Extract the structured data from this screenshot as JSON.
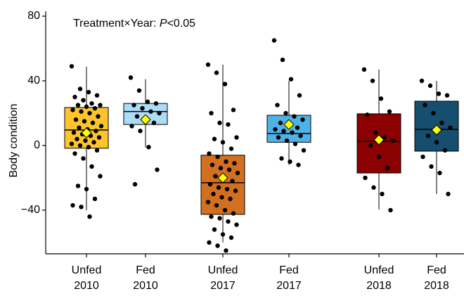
{
  "chart_data": {
    "type": "box",
    "annotation": [
      "Treatment×Year: ",
      "P",
      "<0.05"
    ],
    "ylabel": "Body condition",
    "ylim": [
      -67,
      83
    ],
    "yticks": [
      {
        "value": -40,
        "label": "−40"
      },
      0,
      40,
      80
    ],
    "categories": [
      [
        "Unfed",
        "2010"
      ],
      [
        "Fed",
        "2010"
      ],
      [
        "Unfed",
        "2017"
      ],
      [
        "Fed",
        "2017"
      ],
      [
        "Unfed",
        "2018"
      ],
      [
        "Fed",
        "2018"
      ]
    ],
    "boxes": [
      {
        "color": "#FDC52B",
        "whisker_low": -40,
        "q1": -1.7,
        "median": 9.6,
        "q3": 23.5,
        "whisker_high": 48.7,
        "mean": 7.8,
        "points": [
          49,
          35,
          33,
          31,
          30,
          28,
          26,
          25,
          25,
          24,
          23,
          22,
          21,
          20,
          18,
          16,
          15,
          14,
          12,
          11,
          10,
          9,
          8,
          7,
          6,
          5,
          4,
          3,
          2,
          1,
          0,
          -1,
          -3,
          -5,
          -8,
          -13,
          -19,
          -25,
          -27,
          -33,
          -37,
          -38,
          -44
        ]
      },
      {
        "color": "#ADDCF7",
        "whisker_low": -1.3,
        "q1": 13,
        "median": 21,
        "q3": 26,
        "whisker_high": 41,
        "mean": 16,
        "points": [
          42,
          34,
          27,
          26,
          25,
          23,
          21,
          20,
          18,
          16,
          14,
          12,
          9,
          -1,
          -15,
          -24
        ]
      },
      {
        "color": "#D2701F",
        "whisker_low": -60,
        "q1": -42.6,
        "median": -23,
        "q3": -6,
        "whisker_high": 50,
        "mean": -20,
        "points": [
          50,
          45,
          38,
          22,
          20,
          14,
          13,
          5,
          4,
          2,
          -2,
          -5,
          -7,
          -10,
          -11,
          -12,
          -14,
          -15,
          -17,
          -19,
          -20,
          -22,
          -24,
          -26,
          -27,
          -28,
          -30,
          -32,
          -33,
          -35,
          -37,
          -40,
          -42,
          -44,
          -45,
          -47,
          -49,
          -52,
          -55,
          -57,
          -60,
          -62,
          -65
        ]
      },
      {
        "color": "#4DB3E6",
        "whisker_low": -12,
        "q1": 2,
        "median": 7.4,
        "q3": 18.7,
        "whisker_high": 40,
        "mean": 13,
        "points": [
          65,
          53,
          41,
          31,
          25,
          20,
          18,
          16,
          14,
          13,
          11,
          10,
          9,
          8,
          6,
          5,
          3,
          1,
          -3,
          -8,
          -10,
          -12
        ]
      },
      {
        "color": "#8B0000",
        "whisker_low": -39.6,
        "q1": -17,
        "median": 2.6,
        "q3": 19.6,
        "whisker_high": 47,
        "mean": 3.5,
        "points": [
          47,
          40,
          29,
          21,
          19,
          8,
          5,
          3,
          0,
          -7,
          -14,
          -20,
          -26,
          -30,
          -40
        ]
      },
      {
        "color": "#154E6E",
        "whisker_low": -30,
        "q1": -3.5,
        "median": 10,
        "q3": 27.4,
        "whisker_high": 40,
        "mean": 9.6,
        "points": [
          40,
          37,
          32,
          31,
          25,
          20,
          14,
          11,
          6,
          2,
          -3,
          -7,
          -13,
          -17,
          -30
        ]
      }
    ]
  }
}
